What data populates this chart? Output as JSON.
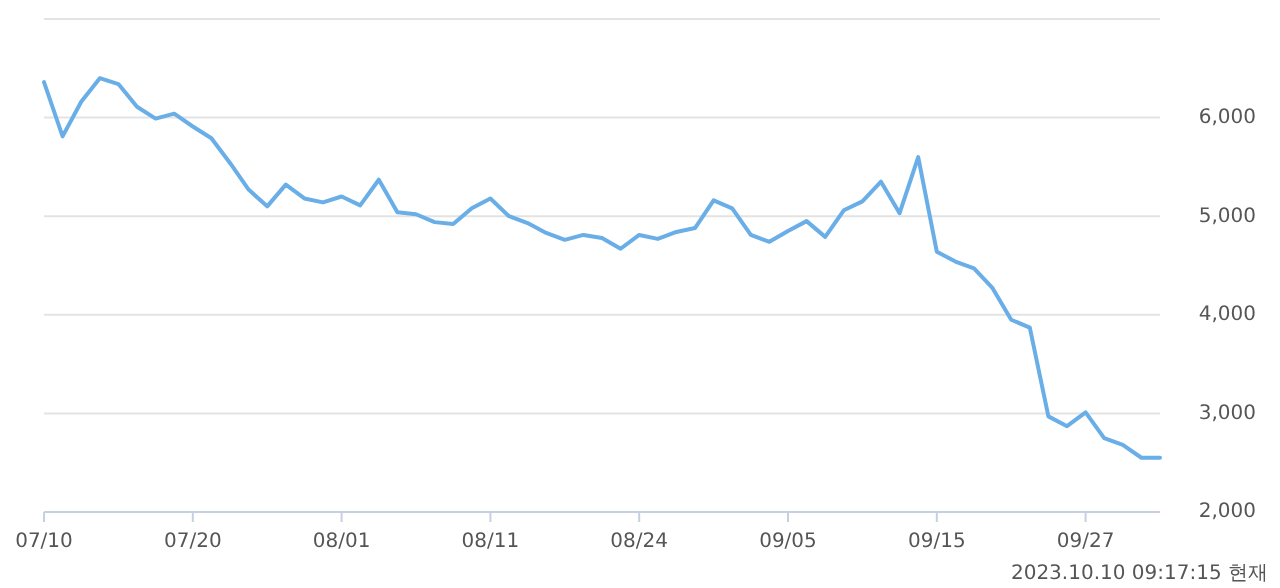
{
  "chart_data": {
    "type": "line",
    "categories": [
      "07/10",
      null,
      null,
      null,
      null,
      null,
      null,
      null,
      "07/20",
      null,
      null,
      null,
      null,
      null,
      null,
      null,
      "08/01",
      null,
      null,
      null,
      null,
      null,
      null,
      null,
      "08/11",
      null,
      null,
      null,
      null,
      null,
      null,
      null,
      "08/24",
      null,
      null,
      null,
      null,
      null,
      null,
      null,
      "09/05",
      null,
      null,
      null,
      null,
      null,
      null,
      null,
      "09/15",
      null,
      null,
      null,
      null,
      null,
      null,
      null,
      "09/27",
      null,
      null,
      null,
      null
    ],
    "series": [
      {
        "color": "#6aaee8",
        "values": [
          6360,
          5810,
          6160,
          6400,
          6340,
          6110,
          5990,
          6040,
          5910,
          5790,
          5540,
          5270,
          5100,
          5320,
          5180,
          5140,
          5200,
          5110,
          5370,
          5040,
          5020,
          4940,
          4920,
          5080,
          5180,
          5000,
          4930,
          4830,
          4760,
          4810,
          4780,
          4670,
          4810,
          4770,
          4840,
          4880,
          5160,
          5080,
          4810,
          4740,
          4850,
          4950,
          4790,
          5060,
          5150,
          5350,
          5030,
          5600,
          4640,
          4540,
          4470,
          4270,
          3950,
          3870,
          2970,
          2870,
          3010,
          2750,
          2680,
          2550,
          2550
        ]
      }
    ],
    "ylim": [
      2000,
      7000
    ],
    "yticks": [
      {
        "value": 2000,
        "label": "2,000"
      },
      {
        "value": 3000,
        "label": "3,000"
      },
      {
        "value": 4000,
        "label": "4,000"
      },
      {
        "value": 5000,
        "label": "5,000"
      },
      {
        "value": 6000,
        "label": "6,000"
      },
      {
        "value": 7000,
        "label": null
      }
    ],
    "grid": "y",
    "marker": "none",
    "line_style": "solid",
    "annotations": [
      "2023.10.10 09:17:15 현재"
    ]
  }
}
